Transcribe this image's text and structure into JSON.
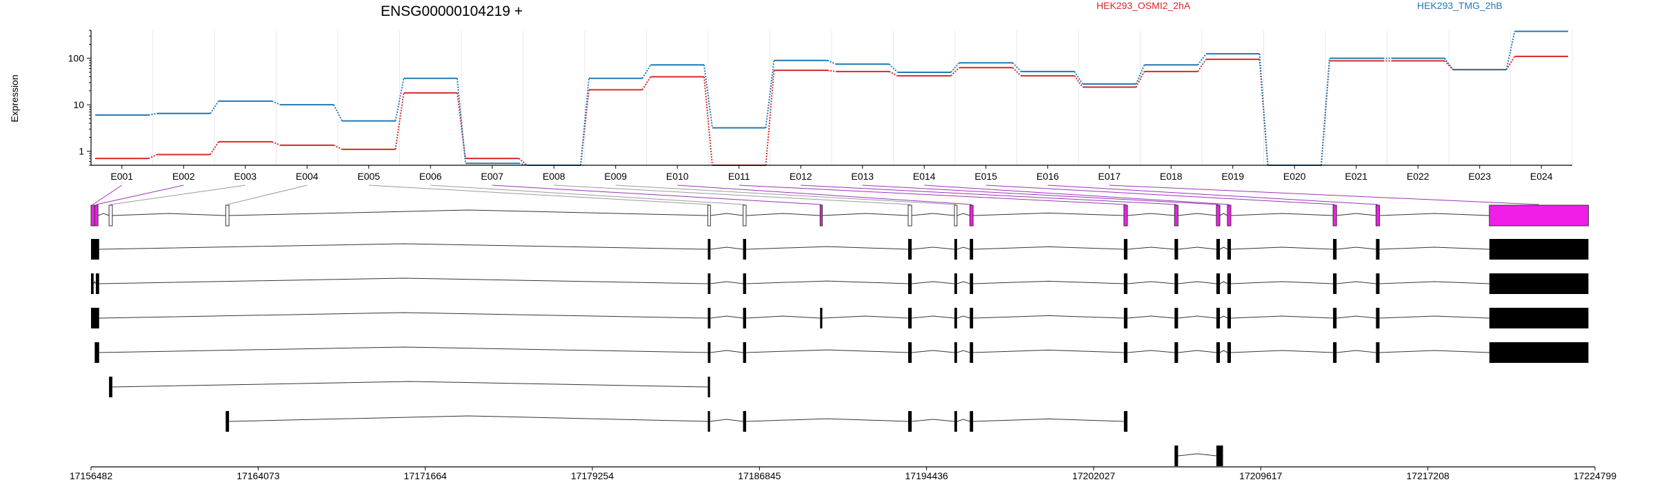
{
  "chart_data": {
    "type": "line",
    "title": "ENSG00000104219 +",
    "ylabel": "Expression",
    "y_scale": "log",
    "ylim": [
      0.5,
      400
    ],
    "y_ticks": [
      1,
      10,
      100
    ],
    "y_tick_labels": [
      "1",
      "10",
      "100"
    ],
    "grid": true,
    "legend_position": "top-right",
    "series_colors": [
      "#d62728",
      "#1f77b4"
    ],
    "categories": [
      "E001",
      "E002",
      "E003",
      "E004",
      "E005",
      "E006",
      "E007",
      "E008",
      "E009",
      "E010",
      "E011",
      "E012",
      "E013",
      "E014",
      "E015",
      "E016",
      "E017",
      "E018",
      "E019",
      "E020",
      "E021",
      "E022",
      "E023",
      "E024"
    ],
    "series": [
      {
        "name": "HEK293_OSMI2_2hA",
        "values": [
          0.7,
          0.85,
          1.6,
          1.35,
          1.1,
          18,
          0.7,
          0.5,
          21,
          40,
          0.5,
          55,
          52,
          42,
          63,
          42,
          24,
          52,
          95,
          0.5,
          88,
          88,
          57,
          110
        ]
      },
      {
        "name": "HEK293_TMG_2hB",
        "values": [
          6,
          6.5,
          12,
          10,
          4.5,
          37,
          0.55,
          0.5,
          37,
          72,
          3.2,
          90,
          75,
          50,
          80,
          52,
          28,
          72,
          125,
          0.5,
          100,
          100,
          57,
          380
        ]
      }
    ],
    "genome_axis_ticks": [
      "17156482",
      "17164073",
      "17171664",
      "17179254",
      "17186845",
      "17194436",
      "17202027",
      "17209617",
      "17217208",
      "17224799"
    ],
    "genome_range": [
      17156482,
      17224799
    ],
    "exon_segments": [
      [
        17156482,
        17156650
      ],
      [
        17156650,
        17156800
      ],
      [
        17157300,
        17157450
      ],
      [
        17162600,
        17162750
      ],
      [
        17184500,
        17184620
      ],
      [
        17186100,
        17186240
      ],
      [
        17189600,
        17189700
      ],
      [
        17193600,
        17193760
      ],
      [
        17195700,
        17195820
      ],
      [
        17196400,
        17196550
      ],
      [
        17203400,
        17203560
      ],
      [
        17205700,
        17205860
      ],
      [
        17207600,
        17207760
      ],
      [
        17208100,
        17208260
      ],
      [
        17212900,
        17213060
      ],
      [
        17214850,
        17215010
      ],
      [
        17220000,
        17224500
      ]
    ],
    "exon_highlight": [
      true,
      true,
      false,
      false,
      false,
      false,
      true,
      false,
      false,
      true,
      true,
      true,
      true,
      true,
      true,
      true,
      true
    ],
    "transcripts": [
      {
        "exons": [
          [
            17156482,
            17156850
          ],
          [
            17184500,
            17184620
          ],
          [
            17186100,
            17186240
          ],
          [
            17193600,
            17193760
          ],
          [
            17195700,
            17195820
          ],
          [
            17196400,
            17196550
          ],
          [
            17203400,
            17203560
          ],
          [
            17205700,
            17205860
          ],
          [
            17207600,
            17207760
          ],
          [
            17208100,
            17208260
          ],
          [
            17212900,
            17213060
          ],
          [
            17214850,
            17215010
          ],
          [
            17220000,
            17224500
          ]
        ]
      },
      {
        "exons": [
          [
            17156482,
            17156600
          ],
          [
            17156700,
            17156850
          ],
          [
            17184500,
            17184620
          ],
          [
            17186100,
            17186240
          ],
          [
            17193600,
            17193760
          ],
          [
            17195700,
            17195820
          ],
          [
            17196400,
            17196550
          ],
          [
            17203400,
            17203560
          ],
          [
            17205700,
            17205860
          ],
          [
            17207600,
            17207760
          ],
          [
            17208100,
            17208260
          ],
          [
            17212900,
            17213060
          ],
          [
            17214850,
            17215010
          ],
          [
            17220000,
            17224500
          ]
        ]
      },
      {
        "exons": [
          [
            17156482,
            17156850
          ],
          [
            17184500,
            17184620
          ],
          [
            17186100,
            17186240
          ],
          [
            17189600,
            17189700
          ],
          [
            17193600,
            17193760
          ],
          [
            17195700,
            17195820
          ],
          [
            17196400,
            17196550
          ],
          [
            17203400,
            17203560
          ],
          [
            17205700,
            17205860
          ],
          [
            17207600,
            17207760
          ],
          [
            17208100,
            17208260
          ],
          [
            17212900,
            17213060
          ],
          [
            17214850,
            17215010
          ],
          [
            17220000,
            17224500
          ]
        ]
      },
      {
        "exons": [
          [
            17156650,
            17156850
          ],
          [
            17184500,
            17184620
          ],
          [
            17186100,
            17186240
          ],
          [
            17193600,
            17193760
          ],
          [
            17195700,
            17195820
          ],
          [
            17196400,
            17196550
          ],
          [
            17203400,
            17203560
          ],
          [
            17205700,
            17205860
          ],
          [
            17207600,
            17207760
          ],
          [
            17208100,
            17208260
          ],
          [
            17212900,
            17213060
          ],
          [
            17214850,
            17215010
          ],
          [
            17220000,
            17224500
          ]
        ]
      },
      {
        "exons": [
          [
            17157300,
            17157450
          ],
          [
            17184500,
            17184600
          ]
        ]
      },
      {
        "exons": [
          [
            17162600,
            17162750
          ],
          [
            17184500,
            17184600
          ],
          [
            17186100,
            17186240
          ],
          [
            17193600,
            17193760
          ],
          [
            17195700,
            17195820
          ],
          [
            17196400,
            17196550
          ],
          [
            17203400,
            17203560
          ]
        ]
      },
      {
        "exons": [
          [
            17205700,
            17205860
          ],
          [
            17207600,
            17207900
          ]
        ]
      }
    ]
  }
}
